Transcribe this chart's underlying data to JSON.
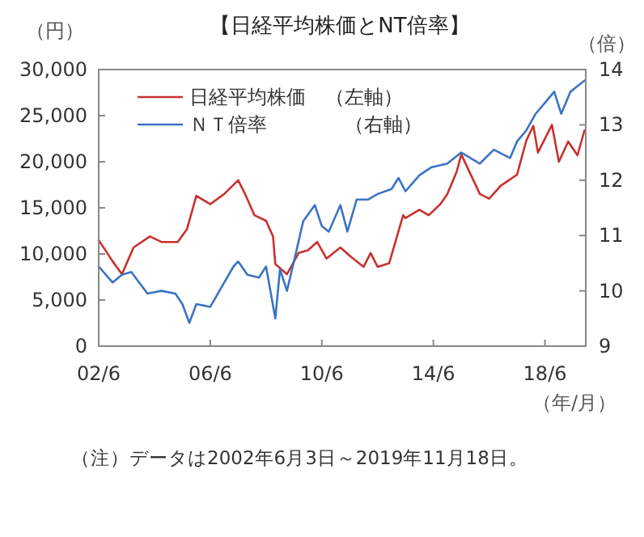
{
  "chart_data": {
    "type": "line",
    "title": "【日経平均株価とNT倍率】",
    "ylabel": "（円）",
    "y2label": "（倍）",
    "xlabel": "（年/月）",
    "annotations": [
      "（注）データは2002年6月3日～2019年11月18日。"
    ],
    "xlim": [
      "2002-06",
      "2019-11-18"
    ],
    "xticks": [
      {
        "value": "2002-06",
        "label": "02/6"
      },
      {
        "value": "2006-06",
        "label": "06/6"
      },
      {
        "value": "2010-06",
        "label": "10/6"
      },
      {
        "value": "2014-06",
        "label": "14/6"
      },
      {
        "value": "2018-06",
        "label": "18/6"
      }
    ],
    "ylim": [
      0,
      30000
    ],
    "yticks": [
      0,
      {
        "value": 5000,
        "label": "5,000"
      },
      {
        "value": 10000,
        "label": "10,000"
      },
      {
        "value": 15000,
        "label": "15,000"
      },
      {
        "value": 20000,
        "label": "20,000"
      },
      {
        "value": 25000,
        "label": "25,000"
      },
      {
        "value": 30000,
        "label": "30,000"
      }
    ],
    "y2lim": [
      9,
      14
    ],
    "y2ticks": [
      9,
      10,
      11,
      12,
      13,
      14
    ],
    "legend": "top left",
    "grid": false,
    "series": [
      {
        "name": "日経平均株価　（左軸）",
        "color": "#c8312e",
        "x": [
          "2002-06",
          "2002-12",
          "2003-04",
          "2003-09",
          "2004-04",
          "2004-09",
          "2005-04",
          "2005-08",
          "2005-12",
          "2006-06",
          "2006-12",
          "2007-06",
          "2007-09",
          "2008-01",
          "2008-06",
          "2008-09",
          "2008-10",
          "2009-03",
          "2009-08",
          "2009-12",
          "2010-04",
          "2010-08",
          "2011-02",
          "2011-06",
          "2011-12",
          "2012-03",
          "2012-06",
          "2012-11",
          "2013-05",
          "2013-06",
          "2013-12",
          "2014-04",
          "2014-09",
          "2014-12",
          "2015-04",
          "2015-06",
          "2016-02",
          "2016-06",
          "2016-11",
          "2017-06",
          "2017-10",
          "2018-01",
          "2018-03",
          "2018-09",
          "2018-12",
          "2019-04",
          "2019-08",
          "2019-11"
        ],
        "values": [
          11500,
          9200,
          7800,
          10700,
          11900,
          11300,
          11300,
          12700,
          16300,
          15400,
          16500,
          18000,
          16500,
          14200,
          13600,
          11900,
          8900,
          7800,
          10100,
          10400,
          11300,
          9500,
          10700,
          9800,
          8600,
          10100,
          8600,
          9000,
          14200,
          13900,
          14800,
          14200,
          15400,
          16500,
          18900,
          20800,
          16500,
          16000,
          17400,
          18600,
          22300,
          23900,
          21000,
          24000,
          20000,
          22200,
          20700,
          23400
        ]
      },
      {
        "name": "ＮＴ倍率　　　　（右軸）",
        "color": "#3b73c4",
        "axis": "y2",
        "x": [
          "2002-06",
          "2002-12",
          "2003-04",
          "2003-08",
          "2004-03",
          "2004-09",
          "2005-03",
          "2005-06",
          "2005-09",
          "2005-12",
          "2006-06",
          "2006-12",
          "2007-04",
          "2007-06",
          "2007-10",
          "2008-03",
          "2008-06",
          "2008-10",
          "2008-12",
          "2009-03",
          "2009-06",
          "2009-10",
          "2010-03",
          "2010-06",
          "2010-09",
          "2011-02",
          "2011-05",
          "2011-09",
          "2012-02",
          "2012-06",
          "2012-12",
          "2013-03",
          "2013-06",
          "2013-12",
          "2014-05",
          "2014-12",
          "2015-06",
          "2016-02",
          "2016-08",
          "2017-03",
          "2017-06",
          "2017-10",
          "2018-02",
          "2018-06",
          "2018-10",
          "2019-01",
          "2019-05",
          "2019-08",
          "2019-11"
        ],
        "values": [
          10.44,
          10.15,
          10.29,
          10.34,
          9.95,
          10.0,
          9.95,
          9.76,
          9.42,
          9.76,
          9.71,
          10.15,
          10.44,
          10.53,
          10.29,
          10.24,
          10.44,
          9.5,
          10.39,
          10.0,
          10.53,
          11.26,
          11.55,
          11.17,
          11.07,
          11.55,
          11.07,
          11.65,
          11.65,
          11.75,
          11.84,
          12.04,
          11.8,
          12.09,
          12.23,
          12.3,
          12.5,
          12.3,
          12.55,
          12.4,
          12.7,
          12.9,
          13.2,
          13.4,
          13.6,
          13.2,
          13.6,
          13.7,
          13.8
        ]
      }
    ]
  }
}
